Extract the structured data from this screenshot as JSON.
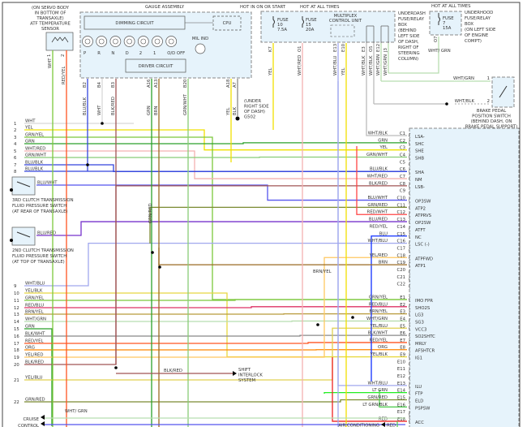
{
  "atf_sensor": {
    "lines": [
      "(ON SERVO BODY",
      "IN BOTTOM OF",
      "TRANSAXLE)",
      "ATF TEMPERATURE",
      "SENSOR"
    ],
    "pins": [
      "1",
      "2"
    ],
    "wires": [
      {
        "label": "WHT",
        "color": "#7cc83c"
      },
      {
        "label": "RED/YEL",
        "color": "#ff5522"
      }
    ]
  },
  "gauge": {
    "title": "GAUGE ASSEMBLY",
    "dimming": "DIMMING CIRCUIT",
    "driver": "DRIVER CIRCUIT",
    "cpu": "CPU",
    "mil": "MIL IND",
    "indicators": [
      "P",
      "R",
      "N",
      "D",
      "2",
      "1",
      "O/D OFF"
    ],
    "wires": [
      {
        "pin": "B2",
        "label": "BLU/BLK",
        "color": "#3344dd"
      },
      {
        "pin": "B4",
        "label": "WHT",
        "color": "#d8d8d8"
      },
      {
        "pin": "B3",
        "label": "BLK/RED",
        "color": "#a05555"
      },
      {
        "pin": "A16",
        "label": "GRN",
        "color": "#2aa02a"
      },
      {
        "pin": "A13",
        "label": "BRN",
        "color": "#9a6a20"
      },
      {
        "pin": "B20",
        "label": "GRN/WHT",
        "color": "#88cc77"
      },
      {
        "pin": "A18",
        "label": "YEL",
        "color": "#f0e000"
      },
      {
        "pin": "A7",
        "label": "BLK",
        "color": "#888888"
      }
    ],
    "ground": [
      "(UNDER",
      "RIGHT SIDE",
      "OF DASH)",
      "G502"
    ]
  },
  "underdash": {
    "hot1": "HOT IN ON OR START",
    "hot2": "HOT AT ALL TIMES",
    "fuse10": [
      "FUSE",
      "10",
      "7.5A"
    ],
    "fuse15": [
      "FUSE",
      "15",
      "20A"
    ],
    "mcu": [
      "MULTIPLEX",
      "CONTROL UNIT"
    ],
    "lines": [
      "UNDERDASH",
      "FUSE/RELAY",
      "BOX",
      "(BEHIND",
      "LEFT SIDE",
      "OF DASH,",
      "RIGHT OF",
      "STEERING",
      "COLUMN)"
    ],
    "wires": [
      {
        "pin": "K7",
        "label": "YEL",
        "color": "#f0e000"
      },
      {
        "pin": "O1",
        "label": "WHT/RED",
        "color": "#f4b0b0"
      },
      {
        "pin": "E13",
        "label": "WHT/BLU",
        "color": "#a0a8ee"
      },
      {
        "pin": "E10",
        "label": "YEL",
        "color": "#f0e000"
      },
      {
        "pin": "E3",
        "label": "WHT/BLK",
        "color": "#bbbbbb"
      },
      {
        "pin": "O5",
        "label": "WHT/BLK",
        "color": "#bbbbbb"
      },
      {
        "pin": "E12",
        "label": "WHT/GRN",
        "color": "#b8ddb0"
      },
      {
        "pin": "J3",
        "label": "WHT/GRN",
        "color": "#b8ddb0"
      }
    ]
  },
  "underhood": {
    "hot": "HOT AT ALL TIMES",
    "fuse": [
      "FUSE",
      "7",
      "15A"
    ],
    "lines": [
      "UNDERHOOD",
      "FUSE/RELAY",
      "BOX",
      "(ON LEFT SIDE",
      "OF ENGINE",
      "COMPT)"
    ],
    "pin": "O7",
    "wire": "WHT/ GRN"
  },
  "brake_switch": {
    "wire1": "WHT/GRN",
    "pin1": "1",
    "wire2": "WHT/BLK",
    "pin2": "2",
    "lines": [
      "BRAKE PEDAL",
      "POSITION SWITCH",
      "(BEHIND DASH, ON",
      "BRAKE PEDAL SUPPORT)"
    ]
  },
  "left_rows": [
    {
      "num": "1",
      "label": "WHT",
      "color": "#d8d8d8"
    },
    {
      "num": "2",
      "label": "YEL",
      "color": "#f0e000"
    },
    {
      "num": "3",
      "label": "GRN/YEL",
      "color": "#7cc83c"
    },
    {
      "num": "4",
      "label": "GRN",
      "color": "#2aa02a"
    },
    {
      "num": "5",
      "label": "WHT/RED",
      "color": "#f4b0b0"
    },
    {
      "num": "6",
      "label": "GRN/WHT",
      "color": "#88cc77"
    },
    {
      "num": "7",
      "label": "BLU/BLK",
      "color": "#3344dd"
    },
    {
      "num": "8",
      "label": "BLU/BLK",
      "color": "#3344dd"
    },
    {
      "num": "",
      "label": "BLU/WHT",
      "color": "#5555ee"
    },
    {
      "num": "",
      "label": "BLU/RED",
      "color": "#7733cc"
    },
    {
      "num": "9",
      "label": "WHT/BLU",
      "color": "#a0a8ee"
    },
    {
      "num": "10",
      "label": "YEL/BLK",
      "color": "#e8d840"
    },
    {
      "num": "11",
      "label": "GRN/YEL",
      "color": "#7cc83c"
    },
    {
      "num": "12",
      "label": "RED/BLU",
      "color": "#dd3366"
    },
    {
      "num": "13",
      "label": "BRN/YEL",
      "color": "#b89a3a"
    },
    {
      "num": "14",
      "label": "WHT/GRN",
      "color": "#b8ddb0"
    },
    {
      "num": "15",
      "label": "GRN",
      "color": "#2aa02a"
    },
    {
      "num": "16",
      "label": "BLK/WHT",
      "color": "#888888"
    },
    {
      "num": "17",
      "label": "RED/YEL",
      "color": "#ff5522"
    },
    {
      "num": "18",
      "label": "ORG",
      "color": "#ff8800"
    },
    {
      "num": "19",
      "label": "YEL/RED",
      "color": "#ffc860"
    },
    {
      "num": "20",
      "label": "BLK/RED",
      "color": "#a05555"
    },
    {
      "num": "21",
      "label": "YEL/BLU",
      "color": "#e0d050"
    },
    {
      "num": "22",
      "label": "GRN/RED",
      "color": "#7a8a30"
    }
  ],
  "clutch3": [
    "3RD CLUTCH TRANSMISSION",
    "FLUID PRESSURE SWITCH",
    "(AT REAR OF TRANSAXLE)"
  ],
  "clutch2": [
    "2ND CLUTCH TRANSMISSION",
    "FLUID PRESSURE SWITCH",
    "(AT TOP OF TRANSAXLE)"
  ],
  "cruise": {
    "lines": [
      "CRUISE",
      "CONTROL"
    ],
    "wire": "WHT/ GRN"
  },
  "shift_interlock": {
    "wire": "BLK/RED",
    "lines": [
      "SHIFT",
      "INTERLOCK",
      "SYSTEM"
    ]
  },
  "mid_labels": {
    "grn_red": "GRN/RED",
    "brn_yel": "BRN/YEL"
  },
  "air_conditioning": {
    "label": "AIR CONDITIONING",
    "wire": "RED"
  },
  "connector": {
    "c_pins": [
      {
        "pin": "C1",
        "wire": "WHT/BLK",
        "func": "LSA-",
        "color": "#bbbbbb"
      },
      {
        "pin": "C2",
        "wire": "GRN",
        "func": "SHC",
        "color": "#2aa02a"
      },
      {
        "pin": "C3",
        "wire": "YEL",
        "func": "SHE",
        "color": "#f0e000"
      },
      {
        "pin": "C4",
        "wire": "GRN/WHT",
        "func": "SHB",
        "color": "#88cc77"
      },
      {
        "pin": "C5",
        "wire": "",
        "func": "",
        "color": ""
      },
      {
        "pin": "C6",
        "wire": "BLU/BLK",
        "func": "SHA",
        "color": "#3344dd"
      },
      {
        "pin": "C7",
        "wire": "WHT/RED",
        "func": "NM",
        "color": "#f4b0b0"
      },
      {
        "pin": "C8",
        "wire": "BLK/RED",
        "func": "LSB-",
        "color": "#a05555"
      },
      {
        "pin": "C9",
        "wire": "",
        "func": "",
        "color": ""
      },
      {
        "pin": "C10",
        "wire": "BLU/WHT",
        "func": "OP3SW",
        "color": "#5555ee"
      },
      {
        "pin": "C11",
        "wire": "GRN/RED",
        "func": "ATP2",
        "color": "#7a8a30"
      },
      {
        "pin": "C12",
        "wire": "RED/WHT",
        "func": "ATPRVS",
        "color": "#ff4444"
      },
      {
        "pin": "C13",
        "wire": "BLU/RED",
        "func": "OP2SW",
        "color": "#7733cc"
      },
      {
        "pin": "C14",
        "wire": "RED/YEL",
        "func": "ATFT",
        "color": "#ff5522"
      },
      {
        "pin": "C15",
        "wire": "BLU",
        "func": "NC",
        "color": "#1030ff"
      },
      {
        "pin": "C16",
        "wire": "WHT/BLU",
        "func": "LSC (-)",
        "color": "#a0a8ee"
      },
      {
        "pin": "C17",
        "wire": "",
        "func": "",
        "color": ""
      },
      {
        "pin": "C18",
        "wire": "YEL/RED",
        "func": "ATPFWD",
        "color": "#ffc860"
      },
      {
        "pin": "C19",
        "wire": "BRN",
        "func": "ATP1",
        "color": "#9a6a20"
      },
      {
        "pin": "C20",
        "wire": "",
        "func": "",
        "color": ""
      },
      {
        "pin": "C21",
        "wire": "",
        "func": "",
        "color": ""
      },
      {
        "pin": "C22",
        "wire": "",
        "func": "",
        "color": ""
      }
    ],
    "e_pins": [
      {
        "pin": "E1",
        "wire": "GRN/YEL",
        "func": "IMO FPR",
        "color": "#7cc83c"
      },
      {
        "pin": "E2",
        "wire": "RED/BLU",
        "func": "SHO2S",
        "color": "#dd3366"
      },
      {
        "pin": "E3",
        "wire": "BRN/YEL",
        "func": "LG3",
        "color": "#b89a3a"
      },
      {
        "pin": "E4",
        "wire": "WHT/GRN",
        "func": "SG3",
        "color": "#b8ddb0"
      },
      {
        "pin": "E5",
        "wire": "YEL/BLU",
        "func": "VCC3",
        "color": "#e0d050"
      },
      {
        "pin": "E6",
        "wire": "BLK/WHT",
        "func": "SO2SHTC",
        "color": "#888888"
      },
      {
        "pin": "E7",
        "wire": "RED/YEL",
        "func": "MRLY",
        "color": "#ff5522"
      },
      {
        "pin": "E8",
        "wire": "ORG",
        "func": "AFSHTCR",
        "color": "#ff8800"
      },
      {
        "pin": "E9",
        "wire": "YEL/BLK",
        "func": "IG1",
        "color": "#e8d840"
      },
      {
        "pin": "E10",
        "wire": "",
        "func": "",
        "color": ""
      },
      {
        "pin": "E11",
        "wire": "",
        "func": "",
        "color": ""
      },
      {
        "pin": "E12",
        "wire": "",
        "func": "",
        "color": ""
      },
      {
        "pin": "E13",
        "wire": "WHT/BLU",
        "func": "ILU",
        "color": "#a0a8ee"
      },
      {
        "pin": "E14",
        "wire": "LT GRN",
        "func": "FTP",
        "color": "#22ee22"
      },
      {
        "pin": "E15",
        "wire": "GRN/RED",
        "func": "ELD",
        "color": "#7a8a30"
      },
      {
        "pin": "E16",
        "wire": "LT GRN/BLK",
        "func": "PSPSW",
        "color": "#55cc55"
      },
      {
        "pin": "E17",
        "wire": "",
        "func": "",
        "color": ""
      },
      {
        "pin": "E18",
        "wire": "RED",
        "func": "ACC",
        "color": "#ee2222"
      }
    ]
  },
  "colors": {
    "box_fill": "#e6f3fb",
    "box_stroke": "#888888",
    "text": "#333333"
  }
}
